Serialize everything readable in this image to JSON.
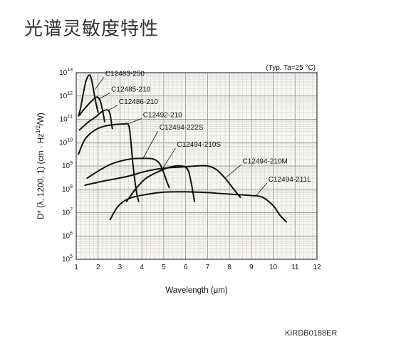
{
  "page": {
    "title": "光谱灵敏度特性",
    "doc_code": "KIRDB0188ER"
  },
  "chart_data": {
    "type": "line",
    "note": "(Typ. Ta=25 °C)",
    "xlabel": "Wavelength (μm)",
    "ylabel_parts": [
      "D* (λ, 1200, 1) (cm · Hz",
      "1/2",
      "/W)"
    ],
    "xlim": [
      1,
      12
    ],
    "x_ticks": [
      1,
      2,
      3,
      4,
      5,
      6,
      7,
      8,
      9,
      10,
      11,
      12
    ],
    "ylim_exp": [
      5,
      13
    ],
    "y_ticks_exp": [
      5,
      6,
      7,
      8,
      9,
      10,
      11,
      12,
      13
    ],
    "y_tick_base": "10",
    "y_scale": "log",
    "grid": true,
    "series": [
      {
        "name": "C12483-250",
        "points": [
          [
            1.1,
            140000000000.0
          ],
          [
            1.2,
            300000000000.0
          ],
          [
            1.3,
            1000000000000.0
          ],
          [
            1.45,
            4500000000000.0
          ],
          [
            1.6,
            8000000000000.0
          ],
          [
            1.7,
            5000000000000.0
          ],
          [
            1.8,
            1600000000000.0
          ],
          [
            1.9,
            500000000000.0
          ],
          [
            2.0,
            200000000000.0
          ]
        ]
      },
      {
        "name": "C12485-210",
        "points": [
          [
            1.15,
            150000000000.0
          ],
          [
            1.4,
            300000000000.0
          ],
          [
            1.7,
            600000000000.0
          ],
          [
            1.95,
            900000000000.0
          ],
          [
            2.1,
            600000000000.0
          ],
          [
            2.2,
            250000000000.0
          ],
          [
            2.3,
            80000000000.0
          ]
        ]
      },
      {
        "name": "C12486-210",
        "points": [
          [
            1.15,
            35000000000.0
          ],
          [
            1.5,
            70000000000.0
          ],
          [
            1.9,
            130000000000.0
          ],
          [
            2.2,
            220000000000.0
          ],
          [
            2.45,
            250000000000.0
          ],
          [
            2.55,
            160000000000.0
          ],
          [
            2.6,
            80000000000.0
          ],
          [
            2.65,
            40000000000.0
          ]
        ]
      },
      {
        "name": "C12492-210",
        "points": [
          [
            1.1,
            3200000000.0
          ],
          [
            1.4,
            14000000000.0
          ],
          [
            1.8,
            32000000000.0
          ],
          [
            2.2,
            48000000000.0
          ],
          [
            2.8,
            60000000000.0
          ],
          [
            3.2,
            63000000000.0
          ],
          [
            3.35,
            63000000000.0
          ],
          [
            3.45,
            30000000000.0
          ],
          [
            3.6,
            1000000000.0
          ],
          [
            3.75,
            80000000.0
          ],
          [
            3.85,
            30000000.0
          ]
        ]
      },
      {
        "name": "C12494-222S",
        "points": [
          [
            1.5,
            300000000.0
          ],
          [
            2.0,
            600000000.0
          ],
          [
            2.5,
            1100000000.0
          ],
          [
            3.0,
            1600000000.0
          ],
          [
            3.5,
            2000000000.0
          ],
          [
            4.0,
            2100000000.0
          ],
          [
            4.5,
            2000000000.0
          ],
          [
            4.8,
            1300000000.0
          ],
          [
            5.0,
            500000000.0
          ],
          [
            5.15,
            200000000.0
          ],
          [
            5.25,
            120000000.0
          ]
        ]
      },
      {
        "name": "C12494-210S",
        "points": [
          [
            3.3,
            30000000.0
          ],
          [
            3.7,
            100000000.0
          ],
          [
            4.2,
            300000000.0
          ],
          [
            4.8,
            600000000.0
          ],
          [
            5.3,
            900000000.0
          ],
          [
            5.8,
            1000000000.0
          ],
          [
            6.1,
            700000000.0
          ],
          [
            6.25,
            200000000.0
          ],
          [
            6.35,
            60000000.0
          ],
          [
            6.4,
            30000000.0
          ]
        ]
      },
      {
        "name": "C12494-210M",
        "points": [
          [
            1.4,
            150000000.0
          ],
          [
            2.3,
            230000000.0
          ],
          [
            3.3,
            350000000.0
          ],
          [
            4.2,
            600000000.0
          ],
          [
            5.0,
            800000000.0
          ],
          [
            5.8,
            900000000.0
          ],
          [
            6.5,
            1000000000.0
          ],
          [
            7.0,
            1000000000.0
          ],
          [
            7.4,
            700000000.0
          ],
          [
            7.8,
            300000000.0
          ],
          [
            8.2,
            100000000.0
          ],
          [
            8.5,
            45000000.0
          ]
        ]
      },
      {
        "name": "C12494-211L",
        "points": [
          [
            2.55,
            5000000.0
          ],
          [
            2.9,
            18000000.0
          ],
          [
            3.4,
            40000000.0
          ],
          [
            4.2,
            60000000.0
          ],
          [
            5.0,
            75000000.0
          ],
          [
            6.0,
            78000000.0
          ],
          [
            7.0,
            72000000.0
          ],
          [
            8.0,
            62000000.0
          ],
          [
            9.0,
            54000000.0
          ],
          [
            9.5,
            46000000.0
          ],
          [
            10.0,
            20000000.0
          ],
          [
            10.3,
            8000000.0
          ],
          [
            10.6,
            4000000.0
          ]
        ]
      }
    ]
  }
}
